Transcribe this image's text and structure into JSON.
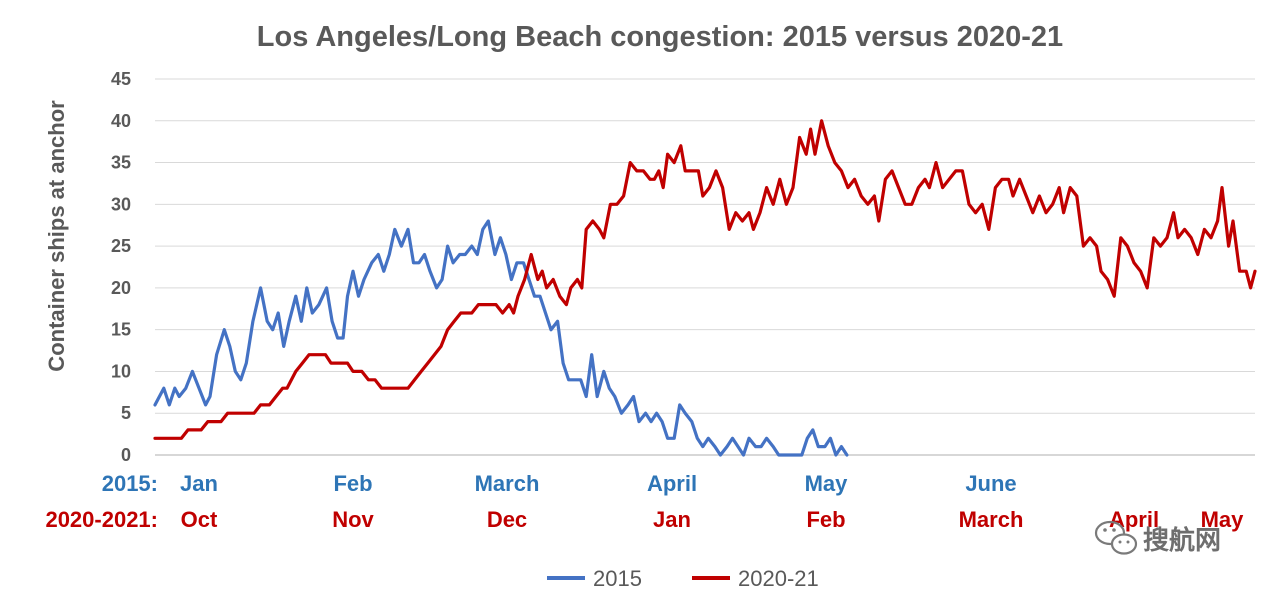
{
  "chart_data": {
    "type": "line",
    "title": "Los Angeles/Long Beach congestion: 2015 versus 2020-21",
    "ylabel": "Container ships at anchor",
    "ylim": [
      0,
      45
    ],
    "yticks": [
      0,
      5,
      10,
      15,
      20,
      25,
      30,
      35,
      40,
      45
    ],
    "grid": true,
    "legend_position": "bottom-center",
    "x_domain": [
      0,
      1
    ],
    "x_label_rows": [
      {
        "prefix": "2015:",
        "labels": [
          {
            "text": "Jan",
            "x": 0.04
          },
          {
            "text": "Feb",
            "x": 0.18
          },
          {
            "text": "March",
            "x": 0.32
          },
          {
            "text": "April",
            "x": 0.47
          },
          {
            "text": "May",
            "x": 0.61
          },
          {
            "text": "June",
            "x": 0.76
          }
        ]
      },
      {
        "prefix": "2020-2021:",
        "labels": [
          {
            "text": "Oct",
            "x": 0.04
          },
          {
            "text": "Nov",
            "x": 0.18
          },
          {
            "text": "Dec",
            "x": 0.32
          },
          {
            "text": "Jan",
            "x": 0.47
          },
          {
            "text": "Feb",
            "x": 0.61
          },
          {
            "text": "March",
            "x": 0.76
          },
          {
            "text": "April",
            "x": 0.89
          },
          {
            "text": "May",
            "x": 0.97
          }
        ]
      }
    ],
    "series": [
      {
        "name": "2015",
        "color": "#4472c4",
        "points": [
          [
            0.0,
            6
          ],
          [
            0.008,
            8
          ],
          [
            0.013,
            6
          ],
          [
            0.018,
            8
          ],
          [
            0.022,
            7
          ],
          [
            0.028,
            8
          ],
          [
            0.034,
            10
          ],
          [
            0.04,
            8
          ],
          [
            0.046,
            6
          ],
          [
            0.05,
            7
          ],
          [
            0.056,
            12
          ],
          [
            0.063,
            15
          ],
          [
            0.068,
            13
          ],
          [
            0.073,
            10
          ],
          [
            0.078,
            9
          ],
          [
            0.083,
            11
          ],
          [
            0.089,
            16
          ],
          [
            0.096,
            20
          ],
          [
            0.102,
            16
          ],
          [
            0.107,
            15
          ],
          [
            0.112,
            17
          ],
          [
            0.117,
            13
          ],
          [
            0.122,
            16
          ],
          [
            0.128,
            19
          ],
          [
            0.133,
            16
          ],
          [
            0.138,
            20
          ],
          [
            0.143,
            17
          ],
          [
            0.149,
            18
          ],
          [
            0.156,
            20
          ],
          [
            0.161,
            16
          ],
          [
            0.166,
            14
          ],
          [
            0.171,
            14
          ],
          [
            0.175,
            19
          ],
          [
            0.18,
            22
          ],
          [
            0.185,
            19
          ],
          [
            0.19,
            21
          ],
          [
            0.197,
            23
          ],
          [
            0.203,
            24
          ],
          [
            0.208,
            22
          ],
          [
            0.213,
            24
          ],
          [
            0.218,
            27
          ],
          [
            0.224,
            25
          ],
          [
            0.23,
            27
          ],
          [
            0.235,
            23
          ],
          [
            0.24,
            23
          ],
          [
            0.245,
            24
          ],
          [
            0.25,
            22
          ],
          [
            0.256,
            20
          ],
          [
            0.261,
            21
          ],
          [
            0.266,
            25
          ],
          [
            0.271,
            23
          ],
          [
            0.277,
            24
          ],
          [
            0.282,
            24
          ],
          [
            0.288,
            25
          ],
          [
            0.293,
            24
          ],
          [
            0.298,
            27
          ],
          [
            0.303,
            28
          ],
          [
            0.309,
            24
          ],
          [
            0.314,
            26
          ],
          [
            0.319,
            24
          ],
          [
            0.324,
            21
          ],
          [
            0.329,
            23
          ],
          [
            0.335,
            23
          ],
          [
            0.34,
            21
          ],
          [
            0.345,
            19
          ],
          [
            0.35,
            19
          ],
          [
            0.355,
            17
          ],
          [
            0.36,
            15
          ],
          [
            0.366,
            16
          ],
          [
            0.371,
            11
          ],
          [
            0.376,
            9
          ],
          [
            0.381,
            9
          ],
          [
            0.387,
            9
          ],
          [
            0.392,
            7
          ],
          [
            0.397,
            12
          ],
          [
            0.402,
            7
          ],
          [
            0.408,
            10
          ],
          [
            0.413,
            8
          ],
          [
            0.418,
            7
          ],
          [
            0.424,
            5
          ],
          [
            0.43,
            6
          ],
          [
            0.435,
            7
          ],
          [
            0.44,
            4
          ],
          [
            0.446,
            5
          ],
          [
            0.451,
            4
          ],
          [
            0.456,
            5
          ],
          [
            0.461,
            4
          ],
          [
            0.466,
            2
          ],
          [
            0.472,
            2
          ],
          [
            0.477,
            6
          ],
          [
            0.482,
            5
          ],
          [
            0.488,
            4
          ],
          [
            0.493,
            2
          ],
          [
            0.498,
            1
          ],
          [
            0.503,
            2
          ],
          [
            0.509,
            1
          ],
          [
            0.514,
            0
          ],
          [
            0.52,
            1
          ],
          [
            0.525,
            2
          ],
          [
            0.53,
            1
          ],
          [
            0.535,
            0
          ],
          [
            0.54,
            2
          ],
          [
            0.546,
            1
          ],
          [
            0.551,
            1
          ],
          [
            0.556,
            2
          ],
          [
            0.562,
            1
          ],
          [
            0.567,
            0
          ],
          [
            0.572,
            0
          ],
          [
            0.577,
            0
          ],
          [
            0.582,
            0
          ],
          [
            0.588,
            0
          ],
          [
            0.593,
            2
          ],
          [
            0.598,
            3
          ],
          [
            0.603,
            1
          ],
          [
            0.609,
            1
          ],
          [
            0.614,
            2
          ],
          [
            0.619,
            0
          ],
          [
            0.624,
            1
          ],
          [
            0.629,
            0
          ]
        ]
      },
      {
        "name": "2020-21",
        "color": "#c00000",
        "points": [
          [
            0.0,
            2
          ],
          [
            0.024,
            2
          ],
          [
            0.03,
            3
          ],
          [
            0.042,
            3
          ],
          [
            0.048,
            4
          ],
          [
            0.06,
            4
          ],
          [
            0.066,
            5
          ],
          [
            0.09,
            5
          ],
          [
            0.096,
            6
          ],
          [
            0.104,
            6
          ],
          [
            0.11,
            7
          ],
          [
            0.116,
            8
          ],
          [
            0.12,
            8
          ],
          [
            0.128,
            10
          ],
          [
            0.134,
            11
          ],
          [
            0.14,
            12
          ],
          [
            0.155,
            12
          ],
          [
            0.16,
            11
          ],
          [
            0.175,
            11
          ],
          [
            0.18,
            10
          ],
          [
            0.188,
            10
          ],
          [
            0.194,
            9
          ],
          [
            0.2,
            9
          ],
          [
            0.206,
            8
          ],
          [
            0.23,
            8
          ],
          [
            0.236,
            9
          ],
          [
            0.242,
            10
          ],
          [
            0.248,
            11
          ],
          [
            0.254,
            12
          ],
          [
            0.26,
            13
          ],
          [
            0.266,
            15
          ],
          [
            0.272,
            16
          ],
          [
            0.278,
            17
          ],
          [
            0.288,
            17
          ],
          [
            0.294,
            18
          ],
          [
            0.304,
            18
          ],
          [
            0.31,
            18
          ],
          [
            0.316,
            17
          ],
          [
            0.322,
            18
          ],
          [
            0.326,
            17
          ],
          [
            0.33,
            19
          ],
          [
            0.336,
            21
          ],
          [
            0.342,
            24
          ],
          [
            0.348,
            21
          ],
          [
            0.352,
            22
          ],
          [
            0.356,
            20
          ],
          [
            0.362,
            21
          ],
          [
            0.368,
            19
          ],
          [
            0.374,
            18
          ],
          [
            0.378,
            20
          ],
          [
            0.384,
            21
          ],
          [
            0.388,
            20
          ],
          [
            0.392,
            27
          ],
          [
            0.398,
            28
          ],
          [
            0.404,
            27
          ],
          [
            0.408,
            26
          ],
          [
            0.414,
            30
          ],
          [
            0.42,
            30
          ],
          [
            0.426,
            31
          ],
          [
            0.432,
            35
          ],
          [
            0.438,
            34
          ],
          [
            0.444,
            34
          ],
          [
            0.45,
            33
          ],
          [
            0.454,
            33
          ],
          [
            0.458,
            34
          ],
          [
            0.462,
            32
          ],
          [
            0.466,
            36
          ],
          [
            0.472,
            35
          ],
          [
            0.478,
            37
          ],
          [
            0.482,
            34
          ],
          [
            0.488,
            34
          ],
          [
            0.494,
            34
          ],
          [
            0.498,
            31
          ],
          [
            0.504,
            32
          ],
          [
            0.51,
            34
          ],
          [
            0.516,
            32
          ],
          [
            0.522,
            27
          ],
          [
            0.528,
            29
          ],
          [
            0.534,
            28
          ],
          [
            0.54,
            29
          ],
          [
            0.544,
            27
          ],
          [
            0.55,
            29
          ],
          [
            0.556,
            32
          ],
          [
            0.562,
            30
          ],
          [
            0.568,
            33
          ],
          [
            0.574,
            30
          ],
          [
            0.58,
            32
          ],
          [
            0.586,
            38
          ],
          [
            0.592,
            36
          ],
          [
            0.596,
            39
          ],
          [
            0.6,
            36
          ],
          [
            0.606,
            40
          ],
          [
            0.612,
            37
          ],
          [
            0.618,
            35
          ],
          [
            0.624,
            34
          ],
          [
            0.63,
            32
          ],
          [
            0.636,
            33
          ],
          [
            0.642,
            31
          ],
          [
            0.648,
            30
          ],
          [
            0.654,
            31
          ],
          [
            0.658,
            28
          ],
          [
            0.664,
            33
          ],
          [
            0.67,
            34
          ],
          [
            0.676,
            32
          ],
          [
            0.682,
            30
          ],
          [
            0.688,
            30
          ],
          [
            0.694,
            32
          ],
          [
            0.7,
            33
          ],
          [
            0.704,
            32
          ],
          [
            0.71,
            35
          ],
          [
            0.716,
            32
          ],
          [
            0.722,
            33
          ],
          [
            0.728,
            34
          ],
          [
            0.734,
            34
          ],
          [
            0.74,
            30
          ],
          [
            0.746,
            29
          ],
          [
            0.752,
            30
          ],
          [
            0.758,
            27
          ],
          [
            0.764,
            32
          ],
          [
            0.77,
            33
          ],
          [
            0.776,
            33
          ],
          [
            0.78,
            31
          ],
          [
            0.786,
            33
          ],
          [
            0.792,
            31
          ],
          [
            0.798,
            29
          ],
          [
            0.804,
            31
          ],
          [
            0.81,
            29
          ],
          [
            0.816,
            30
          ],
          [
            0.822,
            32
          ],
          [
            0.826,
            29
          ],
          [
            0.832,
            32
          ],
          [
            0.838,
            31
          ],
          [
            0.844,
            25
          ],
          [
            0.85,
            26
          ],
          [
            0.856,
            25
          ],
          [
            0.86,
            22
          ],
          [
            0.866,
            21
          ],
          [
            0.872,
            19
          ],
          [
            0.878,
            26
          ],
          [
            0.884,
            25
          ],
          [
            0.89,
            23
          ],
          [
            0.896,
            22
          ],
          [
            0.902,
            20
          ],
          [
            0.908,
            26
          ],
          [
            0.914,
            25
          ],
          [
            0.92,
            26
          ],
          [
            0.926,
            29
          ],
          [
            0.93,
            26
          ],
          [
            0.936,
            27
          ],
          [
            0.942,
            26
          ],
          [
            0.948,
            24
          ],
          [
            0.954,
            27
          ],
          [
            0.96,
            26
          ],
          [
            0.966,
            28
          ],
          [
            0.97,
            32
          ],
          [
            0.976,
            25
          ],
          [
            0.98,
            28
          ],
          [
            0.986,
            22
          ],
          [
            0.992,
            22
          ],
          [
            0.996,
            20
          ],
          [
            1.0,
            22
          ]
        ]
      }
    ]
  },
  "watermark": {
    "text": "搜航网"
  }
}
